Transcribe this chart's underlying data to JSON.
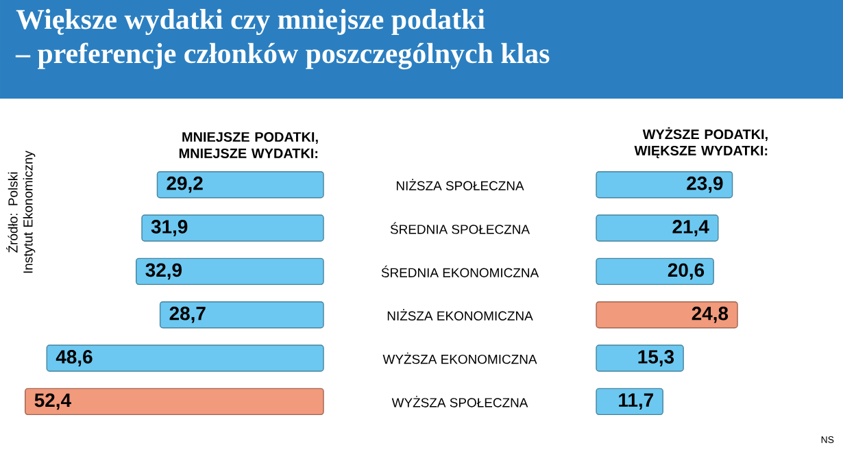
{
  "chart_data": [
    {
      "type": "bar",
      "orientation": "horizontal",
      "title": "Większe wydatki czy mniejsze podatki",
      "subtitle": "– preferencje członków poszczególnych klas",
      "categories": [
        "NIŻSZA SPOŁECZNA",
        "ŚREDNIA SPOŁECZNA",
        "ŚREDNIA EKONOMICZNA",
        "NIŻSZA EKONOMICZNA",
        "WYŻSZA EKONOMICZNA",
        "WYŻSZA SPOŁECZNA"
      ],
      "series": [
        {
          "name": "MNIEJSZE PODATKI, MNIEJSZE WYDATKI:",
          "colors": [
            "#6cc8f0",
            "#6cc8f0",
            "#6cc8f0",
            "#6cc8f0",
            "#6cc8f0",
            "#f29a7c"
          ],
          "values": [
            29.2,
            31.9,
            32.9,
            28.7,
            48.6,
            52.4
          ],
          "value_labels": [
            "29,2",
            "31,9",
            "32,9",
            "28,7",
            "48,6",
            "52,4"
          ]
        }
      ],
      "annotations": [
        "Źródło: Polski Instytut Ekonomiczny",
        "NS"
      ]
    },
    {
      "type": "bar",
      "orientation": "horizontal",
      "categories": [
        null,
        null,
        null,
        null,
        null,
        null
      ],
      "series": [
        {
          "name": "WYŻSZE PODATKI, WIĘKSZE WYDATKI:",
          "colors": [
            "#6cc8f0",
            "#6cc8f0",
            "#6cc8f0",
            "#f29a7c",
            "#6cc8f0",
            "#6cc8f0"
          ],
          "values": [
            23.9,
            21.4,
            20.6,
            24.8,
            15.3,
            11.7
          ],
          "value_labels": [
            "23,9",
            "21,4",
            "20,6",
            "24,8",
            "15,3",
            "11,7"
          ]
        }
      ]
    }
  ]
}
